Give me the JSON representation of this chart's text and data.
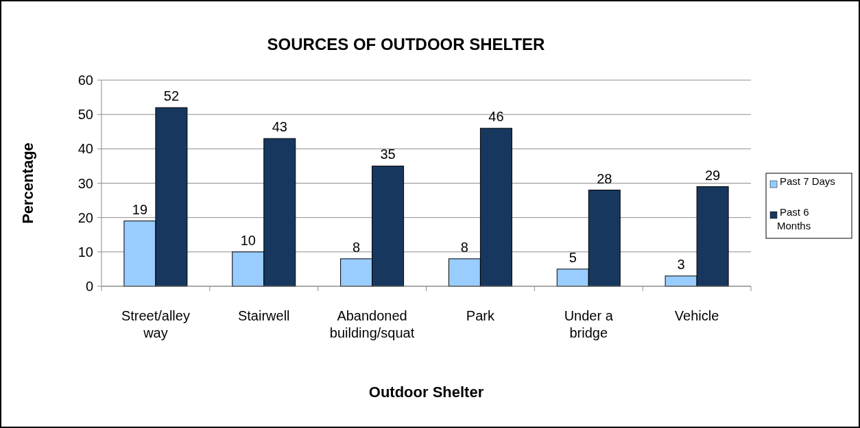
{
  "chart_data": {
    "type": "bar",
    "title": "SOURCES OF OUTDOOR SHELTER",
    "xlabel": "Outdoor Shelter",
    "ylabel": "Percentage",
    "categories": [
      "Street/alley way",
      "Stairwell",
      "Abandoned building/squat",
      "Park",
      "Under a bridge",
      "Vehicle"
    ],
    "series": [
      {
        "name": "Past 7 Days",
        "color": "#99ccff",
        "values": [
          19,
          10,
          8,
          8,
          5,
          3
        ]
      },
      {
        "name": "Past 6 Months",
        "color": "#17375e",
        "values": [
          52,
          43,
          35,
          46,
          28,
          29
        ]
      }
    ],
    "ylim": [
      0,
      60
    ],
    "yticks": [
      0,
      10,
      20,
      30,
      40,
      50,
      60
    ],
    "grid": "y",
    "legend": "right",
    "data_labels": true
  }
}
